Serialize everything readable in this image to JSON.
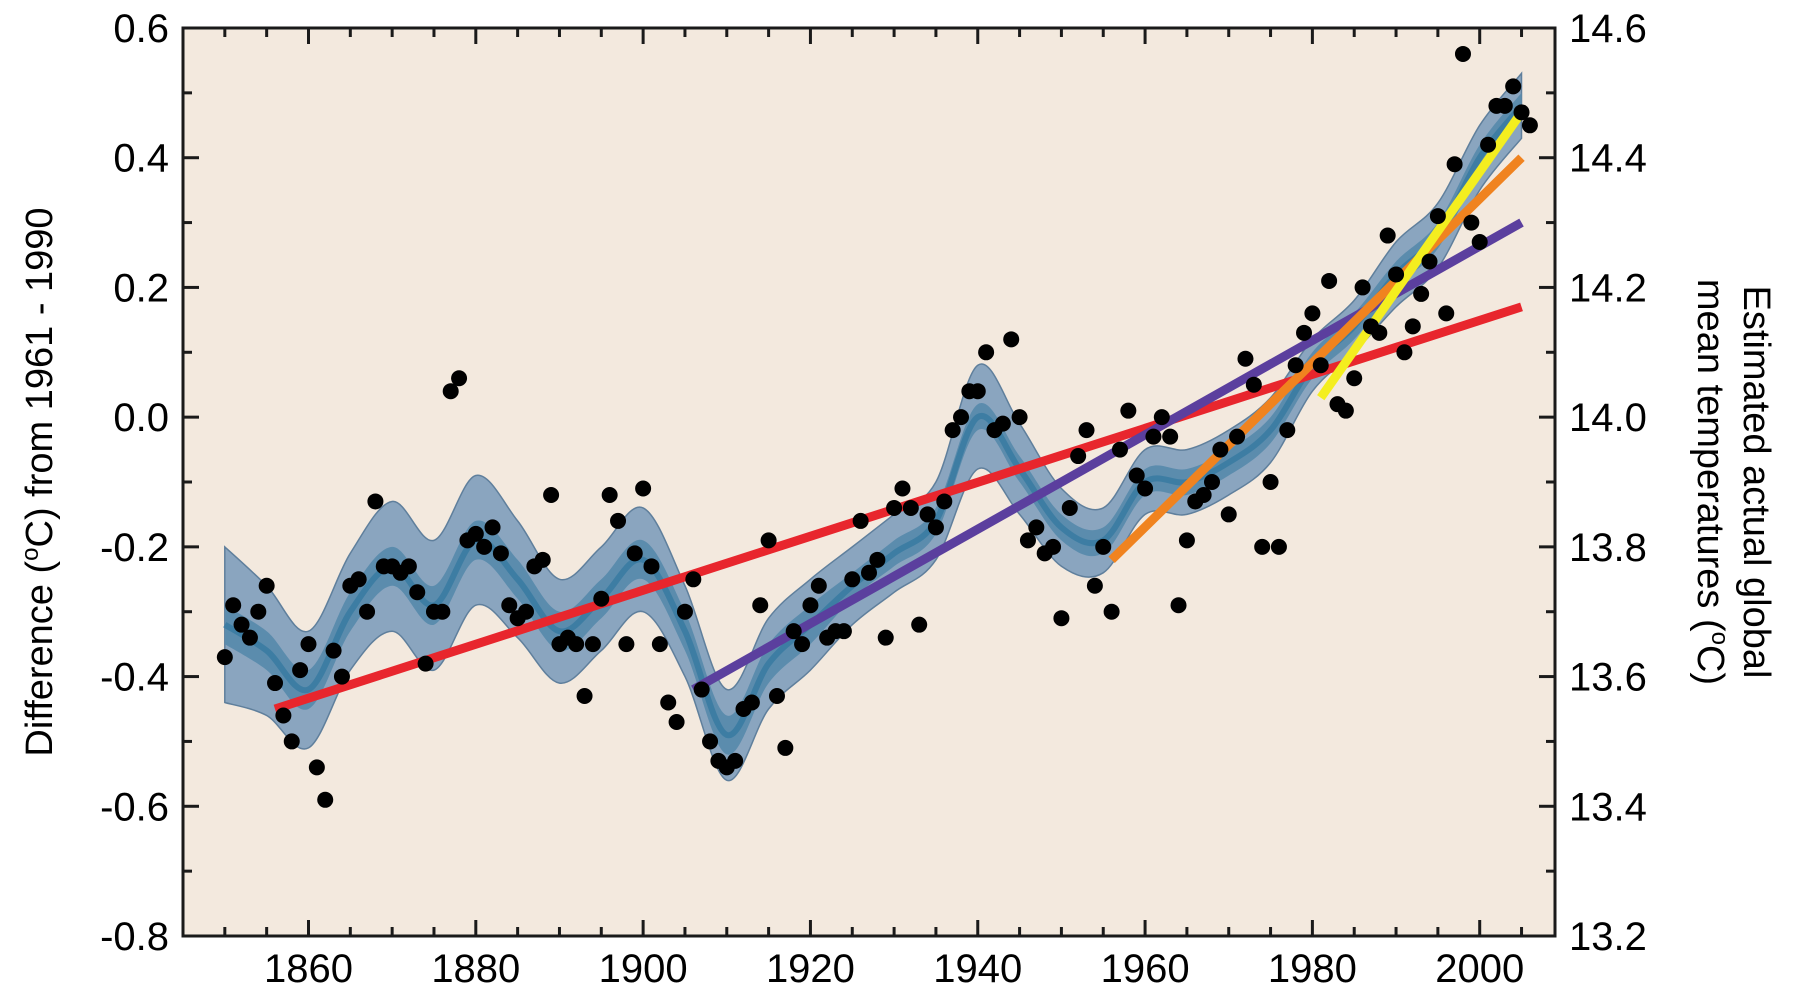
{
  "chart_data": {
    "type": "scatter",
    "title": "",
    "xlabel": "",
    "ylabel": "Difference (°C) from 1961 - 1990",
    "ylabel_parts": [
      "Difference (",
      "o",
      "C) from 1961 - 1990"
    ],
    "ylabel_right": [
      "Estimated actual global",
      "mean temperatures (°C)"
    ],
    "ylabel_right_line2_parts": [
      "mean temperatures (",
      "o",
      "C)"
    ],
    "xlim": [
      1845,
      2009
    ],
    "ylim": [
      -0.8,
      0.6
    ],
    "ylim_right": [
      13.2,
      14.6
    ],
    "x_ticks": [
      1860,
      1880,
      1900,
      1920,
      1940,
      1960,
      1980,
      2000
    ],
    "y_ticks": [
      0.6,
      0.4,
      0.2,
      0.0,
      -0.2,
      -0.4,
      -0.6,
      -0.8
    ],
    "y_tick_labels": [
      "0.6",
      "0.4",
      "0.2",
      "0.0",
      "-0.2",
      "-0.4",
      "-0.6",
      "-0.8"
    ],
    "y_right_ticks": [
      14.6,
      14.4,
      14.2,
      14.0,
      13.8,
      13.6,
      13.4,
      13.2
    ],
    "y_right_tick_labels": [
      "14.6",
      "14.4",
      "14.2",
      "14.0",
      "13.8",
      "13.6",
      "13.4",
      "13.2"
    ],
    "grid": false,
    "colors": {
      "background": "#f3e9de",
      "points": "#000000",
      "band_outer": "#8aa5bf",
      "band_inner": "#5b8cad",
      "smooth_line": "#3d7da3",
      "trend_150yr": "#e8262d",
      "trend_100yr": "#5b3f9e",
      "trend_50yr": "#f0831f",
      "trend_25yr": "#f4ee1f"
    },
    "series": [
      {
        "type": "scatter",
        "x": [
          1850,
          1851,
          1852,
          1853,
          1854,
          1855,
          1856,
          1857,
          1858,
          1859,
          1860,
          1861,
          1862,
          1863,
          1864,
          1865,
          1866,
          1867,
          1868,
          1869,
          1870,
          1871,
          1872,
          1873,
          1874,
          1875,
          1876,
          1877,
          1878,
          1879,
          1880,
          1881,
          1882,
          1883,
          1884,
          1885,
          1886,
          1887,
          1888,
          1889,
          1890,
          1891,
          1892,
          1893,
          1894,
          1895,
          1896,
          1897,
          1898,
          1899,
          1900,
          1901,
          1902,
          1903,
          1904,
          1905,
          1906,
          1907,
          1908,
          1909,
          1910,
          1911,
          1912,
          1913,
          1914,
          1915,
          1916,
          1917,
          1918,
          1919,
          1920,
          1921,
          1922,
          1923,
          1924,
          1925,
          1926,
          1927,
          1928,
          1929,
          1930,
          1931,
          1932,
          1933,
          1934,
          1935,
          1936,
          1937,
          1938,
          1939,
          1940,
          1941,
          1942,
          1943,
          1944,
          1945,
          1946,
          1947,
          1948,
          1949,
          1950,
          1951,
          1952,
          1953,
          1954,
          1955,
          1956,
          1957,
          1958,
          1959,
          1960,
          1961,
          1962,
          1963,
          1964,
          1965,
          1966,
          1967,
          1968,
          1969,
          1970,
          1971,
          1972,
          1973,
          1974,
          1975,
          1976,
          1977,
          1978,
          1979,
          1980,
          1981,
          1982,
          1983,
          1984,
          1985,
          1986,
          1987,
          1988,
          1989,
          1990,
          1991,
          1992,
          1993,
          1994,
          1995,
          1996,
          1997,
          1998,
          1999,
          2000,
          2001,
          2002,
          2003,
          2004,
          2005,
          2006
        ],
        "y": [
          -0.37,
          -0.29,
          -0.32,
          -0.34,
          -0.3,
          -0.26,
          -0.41,
          -0.46,
          -0.5,
          -0.39,
          -0.35,
          -0.54,
          -0.59,
          -0.36,
          -0.4,
          -0.26,
          -0.25,
          -0.3,
          -0.13,
          -0.23,
          -0.23,
          -0.24,
          -0.23,
          -0.27,
          -0.38,
          -0.3,
          -0.3,
          0.04,
          0.06,
          -0.19,
          -0.18,
          -0.2,
          -0.17,
          -0.21,
          -0.29,
          -0.31,
          -0.3,
          -0.23,
          -0.22,
          -0.12,
          -0.35,
          -0.34,
          -0.35,
          -0.43,
          -0.35,
          -0.28,
          -0.12,
          -0.16,
          -0.35,
          -0.21,
          -0.11,
          -0.23,
          -0.35,
          -0.44,
          -0.47,
          -0.3,
          -0.25,
          -0.42,
          -0.5,
          -0.53,
          -0.54,
          -0.53,
          -0.45,
          -0.44,
          -0.29,
          -0.19,
          -0.43,
          -0.51,
          -0.33,
          -0.35,
          -0.29,
          -0.26,
          -0.34,
          -0.33,
          -0.33,
          -0.25,
          -0.16,
          -0.24,
          -0.22,
          -0.34,
          -0.14,
          -0.11,
          -0.14,
          -0.32,
          -0.15,
          -0.17,
          -0.13,
          -0.02,
          0.0,
          0.04,
          0.04,
          0.1,
          -0.02,
          -0.01,
          0.12,
          0.0,
          -0.19,
          -0.17,
          -0.21,
          -0.2,
          -0.31,
          -0.14,
          -0.06,
          -0.02,
          -0.26,
          -0.2,
          -0.3,
          -0.05,
          0.01,
          -0.09,
          -0.11,
          -0.03,
          0.0,
          -0.03,
          -0.29,
          -0.19,
          -0.13,
          -0.12,
          -0.1,
          -0.05,
          -0.15,
          -0.03,
          0.09,
          0.05,
          -0.2,
          -0.1,
          -0.2,
          -0.02,
          0.08,
          0.13,
          0.16,
          0.08,
          0.21,
          0.02,
          0.01,
          0.06,
          0.2,
          0.14,
          0.13,
          0.28,
          0.22,
          0.1,
          0.14,
          0.19,
          0.24,
          0.31,
          0.16,
          0.39,
          0.56,
          0.3,
          0.27,
          0.42,
          0.48,
          0.48,
          0.51,
          0.47,
          0.45
        ]
      },
      {
        "type": "smooth",
        "x": [
          1850,
          1855,
          1860,
          1865,
          1870,
          1875,
          1880,
          1885,
          1890,
          1895,
          1900,
          1905,
          1910,
          1915,
          1920,
          1925,
          1930,
          1935,
          1940,
          1945,
          1950,
          1955,
          1960,
          1965,
          1970,
          1975,
          1980,
          1985,
          1990,
          1995,
          2000,
          2005
        ],
        "y": [
          -0.32,
          -0.36,
          -0.42,
          -0.3,
          -0.23,
          -0.29,
          -0.19,
          -0.25,
          -0.33,
          -0.28,
          -0.22,
          -0.33,
          -0.49,
          -0.38,
          -0.32,
          -0.26,
          -0.21,
          -0.16,
          0.0,
          -0.08,
          -0.17,
          -0.19,
          -0.1,
          -0.1,
          -0.07,
          -0.02,
          0.08,
          0.14,
          0.22,
          0.28,
          0.4,
          0.48
        ],
        "band_outer": [
          0.12,
          0.1,
          0.09,
          0.09,
          0.1,
          0.1,
          0.1,
          0.09,
          0.08,
          0.08,
          0.08,
          0.07,
          0.07,
          0.07,
          0.07,
          0.06,
          0.06,
          0.06,
          0.08,
          0.07,
          0.06,
          0.05,
          0.05,
          0.05,
          0.05,
          0.05,
          0.04,
          0.04,
          0.05,
          0.05,
          0.05,
          0.05
        ],
        "band_inner": [
          0.03,
          0.03,
          0.03,
          0.03,
          0.03,
          0.03,
          0.03,
          0.03,
          0.03,
          0.03,
          0.03,
          0.03,
          0.03,
          0.03,
          0.03,
          0.02,
          0.02,
          0.02,
          0.02,
          0.02,
          0.02,
          0.02,
          0.02,
          0.02,
          0.02,
          0.02,
          0.02,
          0.02,
          0.02,
          0.02,
          0.02,
          0.02
        ]
      },
      {
        "type": "trend",
        "color_key": "trend_150yr",
        "x": [
          1856,
          2005
        ],
        "y": [
          -0.45,
          0.17
        ]
      },
      {
        "type": "trend",
        "color_key": "trend_100yr",
        "x": [
          1906,
          2005
        ],
        "y": [
          -0.42,
          0.3
        ]
      },
      {
        "type": "trend",
        "color_key": "trend_50yr",
        "x": [
          1956,
          2005
        ],
        "y": [
          -0.22,
          0.4
        ]
      },
      {
        "type": "trend",
        "color_key": "trend_25yr",
        "x": [
          1981,
          2005
        ],
        "y": [
          0.03,
          0.47
        ]
      }
    ]
  }
}
